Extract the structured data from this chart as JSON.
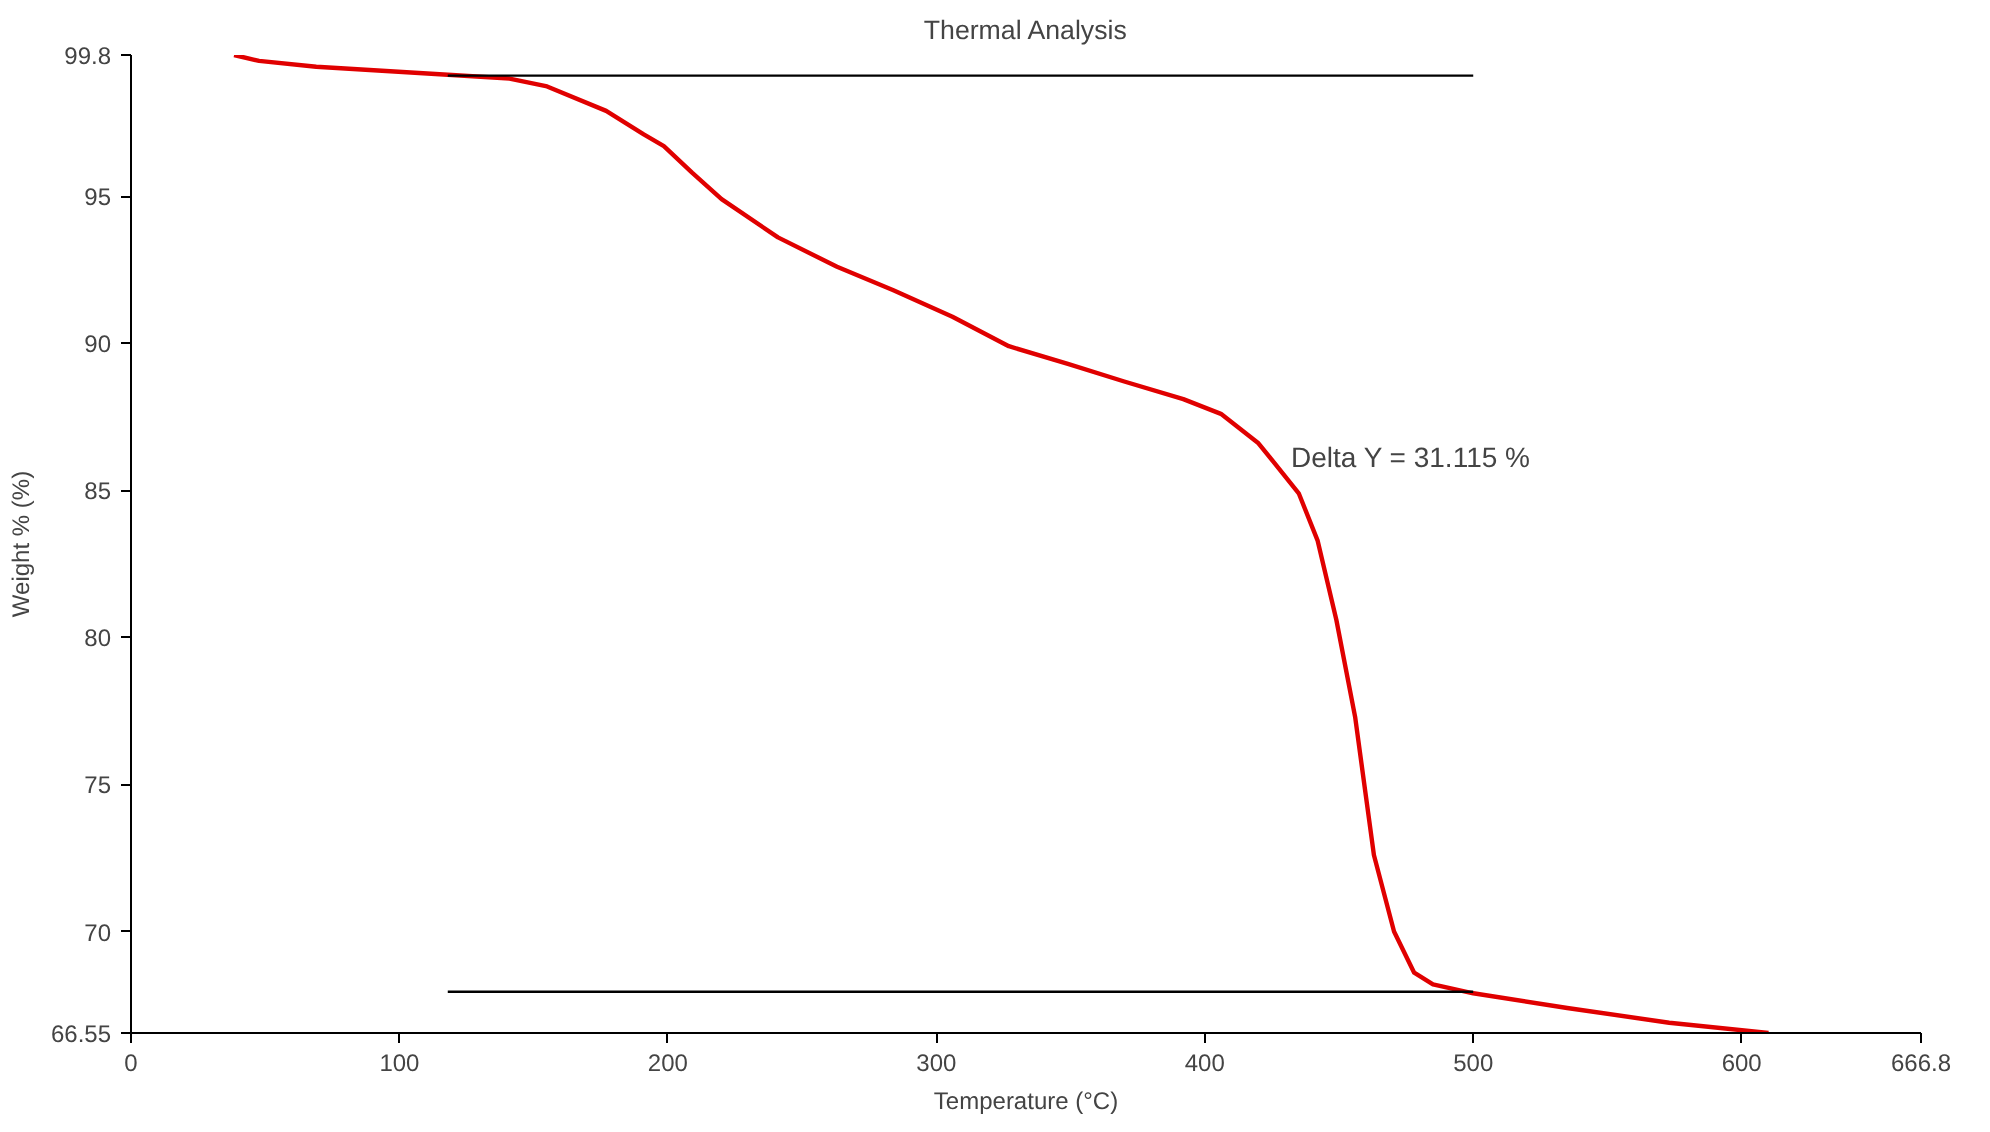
{
  "chart_data": {
    "type": "line",
    "title": "Thermal Analysis",
    "xlabel": "Temperature (°C)",
    "ylabel": "Weight % (%)",
    "xlim": [
      0,
      666.8
    ],
    "xticks": [
      0,
      100,
      200,
      300,
      400,
      500,
      600,
      666.8
    ],
    "ylim": [
      66.55,
      99.8
    ],
    "yticks": [
      66.55,
      70,
      75,
      80,
      85,
      90,
      95,
      99.8
    ],
    "grid": false,
    "marker": "none",
    "line_style": "solid",
    "series": [
      {
        "color": "#e00000",
        "x": [
          38.4,
          47.7,
          69,
          118,
          141,
          155,
          177,
          191,
          198.5,
          209,
          220,
          241,
          263,
          284,
          306,
          327,
          349,
          370,
          392,
          406,
          420,
          435,
          442,
          449,
          456,
          463,
          470.5,
          478,
          485,
          500,
          535,
          573,
          610
        ],
        "values": [
          99.8,
          99.6,
          99.4,
          99.13,
          99.0,
          98.73,
          97.9,
          97.1,
          96.7,
          95.8,
          94.9,
          93.6,
          92.6,
          91.8,
          90.9,
          89.9,
          89.3,
          88.7,
          88.1,
          87.6,
          86.6,
          84.9,
          83.3,
          80.6,
          77.3,
          72.6,
          70.0,
          68.6,
          68.2,
          67.9,
          67.4,
          66.9,
          66.55
        ]
      },
      {
        "color": "#000000",
        "x": [
          118,
          500
        ],
        "values": [
          99.1,
          99.1
        ]
      },
      {
        "color": "#000000",
        "x": [
          118,
          500
        ],
        "values": [
          67.95,
          67.95
        ]
      }
    ],
    "annotations": [
      "Delta Y = 31.115 %"
    ]
  }
}
